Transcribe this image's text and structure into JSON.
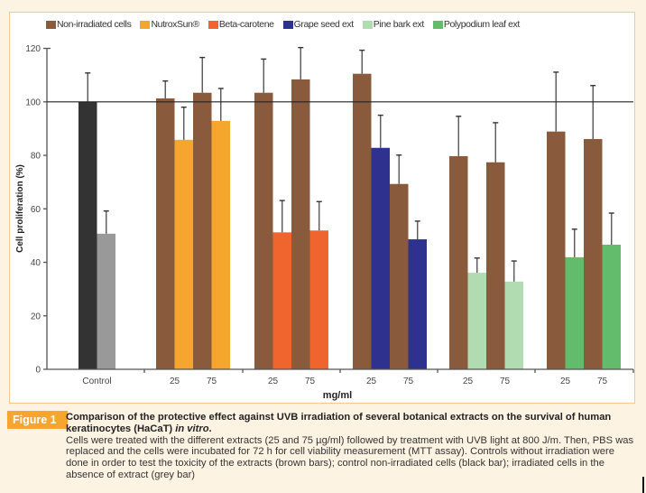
{
  "figure": {
    "badge": "Figure 1",
    "title_main": "Comparison of the protective effect against UVB irradiation of several botanical extracts on the survival of human keratinocytes (HaCaT) ",
    "title_italic": "in vitro",
    "title_end": ".",
    "body": "Cells were treated with the different extracts (25 and 75 µg/ml) followed by treatment with UVB light at 800 J/m. Then, PBS was replaced and the cells were incubated for 72 h for cell viability measurement (MTT assay). Controls without irradiation were done in order to test the toxicity of the extracts (brown bars); control non-irradiated cells (black bar); irradiated cells in the absence of extract (grey bar)"
  },
  "legend": [
    {
      "label": "Non-irradiated cells",
      "color": "#8a5a3c"
    },
    {
      "label": "NutroxSun®",
      "color": "#f6a52f"
    },
    {
      "label": "Beta-carotene",
      "color": "#f0642d"
    },
    {
      "label": "Grape seed ext",
      "color": "#2e318e"
    },
    {
      "label": "Pine bark ext",
      "color": "#b1dbb0"
    },
    {
      "label": "Polypodium leaf ext",
      "color": "#63bc6c"
    }
  ],
  "chart_data": {
    "type": "bar",
    "title": "",
    "xlabel": "mg/ml",
    "ylabel": "Cell proliferation (%)",
    "ylim": [
      0,
      120
    ],
    "yticks": [
      0,
      20,
      40,
      60,
      80,
      100,
      120
    ],
    "reference_line": 100,
    "grid": false,
    "legend_position": "top",
    "groups": [
      {
        "name": "Control",
        "tick_labels": [
          "Control"
        ],
        "bars": [
          {
            "series": "Control non-irradiated",
            "color": "#333333",
            "value": 100,
            "error": 10.8
          },
          {
            "series": "Irradiated, no extract",
            "color": "#999999",
            "value": 50.7,
            "error": 8.5
          }
        ]
      },
      {
        "name": "NutroxSun®",
        "tick_labels": [
          "25",
          "75"
        ],
        "bars": [
          {
            "series": "Non-irradiated cells",
            "dose": "25",
            "color": "#8a5a3c",
            "value": 101.3,
            "error": 6.5
          },
          {
            "series": "NutroxSun®",
            "dose": "25",
            "color": "#f6a52f",
            "value": 85.8,
            "error": 12.2
          },
          {
            "series": "Non-irradiated cells",
            "dose": "75",
            "color": "#8a5a3c",
            "value": 103.4,
            "error": 13.2
          },
          {
            "series": "NutroxSun®",
            "dose": "75",
            "color": "#f6a52f",
            "value": 92.9,
            "error": 12.1
          }
        ]
      },
      {
        "name": "Beta-carotene",
        "tick_labels": [
          "25",
          "75"
        ],
        "bars": [
          {
            "series": "Non-irradiated cells",
            "dose": "25",
            "color": "#8a5a3c",
            "value": 103.4,
            "error": 12.6
          },
          {
            "series": "Beta-carotene",
            "dose": "25",
            "color": "#f0642d",
            "value": 51.2,
            "error": 11.9
          },
          {
            "series": "Non-irradiated cells",
            "dose": "75",
            "color": "#8a5a3c",
            "value": 108.4,
            "error": 11.9
          },
          {
            "series": "Beta-carotene",
            "dose": "75",
            "color": "#f0642d",
            "value": 51.9,
            "error": 10.8
          }
        ]
      },
      {
        "name": "Grape seed ext",
        "tick_labels": [
          "25",
          "75"
        ],
        "bars": [
          {
            "series": "Non-irradiated cells",
            "dose": "25",
            "color": "#8a5a3c",
            "value": 110.5,
            "error": 8.8
          },
          {
            "series": "Grape seed ext",
            "dose": "25",
            "color": "#2e318e",
            "value": 82.8,
            "error": 12.2
          },
          {
            "series": "Non-irradiated cells",
            "dose": "75",
            "color": "#8a5a3c",
            "value": 69.3,
            "error": 10.8
          },
          {
            "series": "Grape seed ext",
            "dose": "75",
            "color": "#2e318e",
            "value": 48.6,
            "error": 6.8
          }
        ]
      },
      {
        "name": "Pine bark ext",
        "tick_labels": [
          "25",
          "75"
        ],
        "bars": [
          {
            "series": "Non-irradiated cells",
            "dose": "25",
            "color": "#8a5a3c",
            "value": 79.7,
            "error": 14.9
          },
          {
            "series": "Pine bark ext",
            "dose": "25",
            "color": "#b1dbb0",
            "value": 36.1,
            "error": 5.5
          },
          {
            "series": "Non-irradiated cells",
            "dose": "75",
            "color": "#8a5a3c",
            "value": 77.4,
            "error": 14.8
          },
          {
            "series": "Pine bark ext",
            "dose": "75",
            "color": "#b1dbb0",
            "value": 32.8,
            "error": 7.7
          }
        ]
      },
      {
        "name": "Polypodium leaf ext",
        "tick_labels": [
          "25",
          "75"
        ],
        "bars": [
          {
            "series": "Non-irradiated cells",
            "dose": "25",
            "color": "#8a5a3c",
            "value": 88.9,
            "error": 22.2
          },
          {
            "series": "Polypodium leaf ext",
            "dose": "25",
            "color": "#63bc6c",
            "value": 41.9,
            "error": 10.5
          },
          {
            "series": "Non-irradiated cells",
            "dose": "75",
            "color": "#8a5a3c",
            "value": 86.1,
            "error": 20.0
          },
          {
            "series": "Polypodium leaf ext",
            "dose": "75",
            "color": "#63bc6c",
            "value": 46.6,
            "error": 11.8
          }
        ]
      }
    ]
  }
}
